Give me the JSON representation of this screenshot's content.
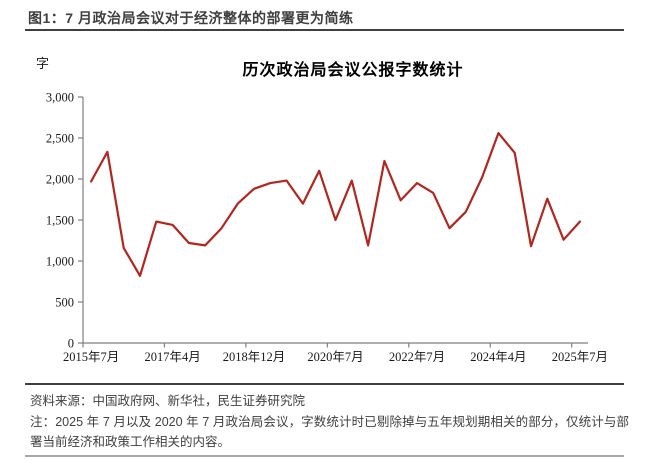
{
  "figure": {
    "title": "图1：7 月政治局会议对于经济整体的部署更为简练"
  },
  "chart_data": {
    "type": "line",
    "title": "历次政治局会议公报字数统计",
    "unit_label": "字",
    "xlabel": "",
    "ylabel": "字",
    "ylim": [
      0,
      3000
    ],
    "ytick_values": [
      0,
      500,
      1000,
      1500,
      2000,
      2500,
      3000
    ],
    "ytick_labels": [
      "0",
      "500",
      "1,000",
      "1,500",
      "2,000",
      "2,500",
      "3,000"
    ],
    "series_name": "历次政治局会议公报字数",
    "values": [
      1970,
      2330,
      1160,
      820,
      1480,
      1440,
      1220,
      1190,
      1400,
      1700,
      1880,
      1950,
      1980,
      1700,
      2100,
      1500,
      1980,
      1190,
      2220,
      1740,
      1950,
      1830,
      1400,
      1600,
      2020,
      2560,
      2320,
      1180,
      1760,
      1260,
      1480
    ],
    "n_points": 31,
    "xtick_positions": [
      0,
      5,
      10,
      15,
      20,
      25,
      30
    ],
    "xtick_labels": [
      "2015年7月",
      "2017年4月",
      "2018年12月",
      "2020年7月",
      "2022年7月",
      "2024年4月",
      "2025年7月"
    ],
    "line_color": "#b2261f",
    "axis_color": "#7f7f7f",
    "grid": false,
    "legend": "none"
  },
  "footer": {
    "source": "资料来源：中国政府网、新华社，民生证券研究院",
    "note": "注：2025 年 7 月以及 2020 年 7 月政治局会议，字数统计时已剔除掉与五年规划期相关的部分，仅统计与部署当前经济和政策工作相关的内容。"
  },
  "colors": {
    "line": "#b2261f",
    "heading_text": "#3f3f3f",
    "rule_dark": "#404040",
    "rule_light": "#a8a8a8",
    "axis": "#7f7f7f"
  }
}
